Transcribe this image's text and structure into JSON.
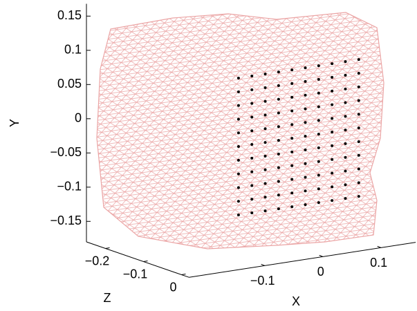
{
  "chart_data": {
    "type": "mesh3d",
    "xlabel": "X",
    "ylabel": "Y",
    "zlabel": "Z",
    "xlim": [
      -0.23,
      0.16
    ],
    "ylim": [
      -0.18,
      0.168
    ],
    "zlim": [
      -0.25,
      0.02
    ],
    "xticks": [
      {
        "value": -0.1,
        "label": "−0.1"
      },
      0,
      0.1
    ],
    "yticks": [
      0.15,
      0.1,
      0.05,
      0,
      {
        "value": -0.05,
        "label": "−0.05"
      },
      {
        "value": -0.1,
        "label": "−0.1"
      },
      {
        "value": -0.15,
        "label": "−0.15"
      }
    ],
    "zticks": [
      {
        "value": -0.2,
        "label": "−0.2"
      },
      {
        "value": -0.1,
        "label": "−0.1"
      },
      0
    ],
    "mesh_color": "#eba5a5",
    "points": {
      "color": "#000000",
      "z": 0.02,
      "x": [
        -0.145,
        -0.122,
        -0.099,
        -0.076,
        -0.053,
        -0.03,
        -0.007,
        0.016,
        0.039,
        0.062,
        -0.145,
        -0.122,
        -0.099,
        -0.076,
        -0.053,
        -0.03,
        -0.007,
        0.016,
        0.039,
        0.062,
        -0.145,
        -0.122,
        -0.099,
        -0.076,
        -0.053,
        -0.03,
        -0.007,
        0.016,
        0.039,
        0.062,
        -0.145,
        -0.122,
        -0.099,
        -0.076,
        -0.053,
        -0.03,
        -0.007,
        0.016,
        0.039,
        0.062,
        -0.145,
        -0.122,
        -0.099,
        -0.076,
        -0.053,
        -0.03,
        -0.007,
        0.016,
        0.039,
        0.062,
        -0.145,
        -0.122,
        -0.099,
        -0.076,
        -0.053,
        -0.03,
        -0.007,
        0.016,
        0.039,
        0.062,
        -0.145,
        -0.122,
        -0.099,
        -0.076,
        -0.053,
        -0.03,
        -0.007,
        0.016,
        0.039,
        0.062,
        -0.145,
        -0.122,
        -0.099,
        -0.076,
        -0.053,
        -0.03,
        -0.007,
        0.016,
        0.039,
        0.062,
        -0.145,
        -0.122,
        -0.099,
        -0.076,
        -0.053,
        -0.03,
        -0.007,
        0.016,
        0.039,
        0.062,
        -0.145,
        -0.122,
        -0.099,
        -0.076,
        -0.053,
        -0.03,
        -0.007,
        0.016,
        0.039,
        0.062,
        -0.145,
        -0.122,
        -0.099,
        -0.076,
        -0.053,
        -0.03,
        -0.007,
        0.016,
        0.039,
        0.062
      ],
      "y": [
        0.1,
        0.1,
        0.1,
        0.1,
        0.1,
        0.1,
        0.1,
        0.1,
        0.1,
        0.1,
        0.08,
        0.08,
        0.08,
        0.08,
        0.08,
        0.08,
        0.08,
        0.08,
        0.08,
        0.08,
        0.06,
        0.06,
        0.06,
        0.06,
        0.06,
        0.06,
        0.06,
        0.06,
        0.06,
        0.06,
        0.04,
        0.04,
        0.04,
        0.04,
        0.04,
        0.04,
        0.04,
        0.04,
        0.04,
        0.04,
        0.02,
        0.02,
        0.02,
        0.02,
        0.02,
        0.02,
        0.02,
        0.02,
        0.02,
        0.02,
        0,
        0,
        0,
        0,
        0,
        0,
        0,
        0,
        0,
        0,
        -0.02,
        -0.02,
        -0.02,
        -0.02,
        -0.02,
        -0.02,
        -0.02,
        -0.02,
        -0.02,
        -0.02,
        -0.04,
        -0.04,
        -0.04,
        -0.04,
        -0.04,
        -0.04,
        -0.04,
        -0.04,
        -0.04,
        -0.04,
        -0.06,
        -0.06,
        -0.06,
        -0.06,
        -0.06,
        -0.06,
        -0.06,
        -0.06,
        -0.06,
        -0.06,
        -0.08,
        -0.08,
        -0.08,
        -0.08,
        -0.08,
        -0.08,
        -0.08,
        -0.08,
        -0.08,
        -0.08,
        -0.1,
        -0.1,
        -0.1,
        -0.1,
        -0.1,
        -0.1,
        -0.1,
        -0.1,
        -0.1,
        -0.1
      ]
    }
  }
}
